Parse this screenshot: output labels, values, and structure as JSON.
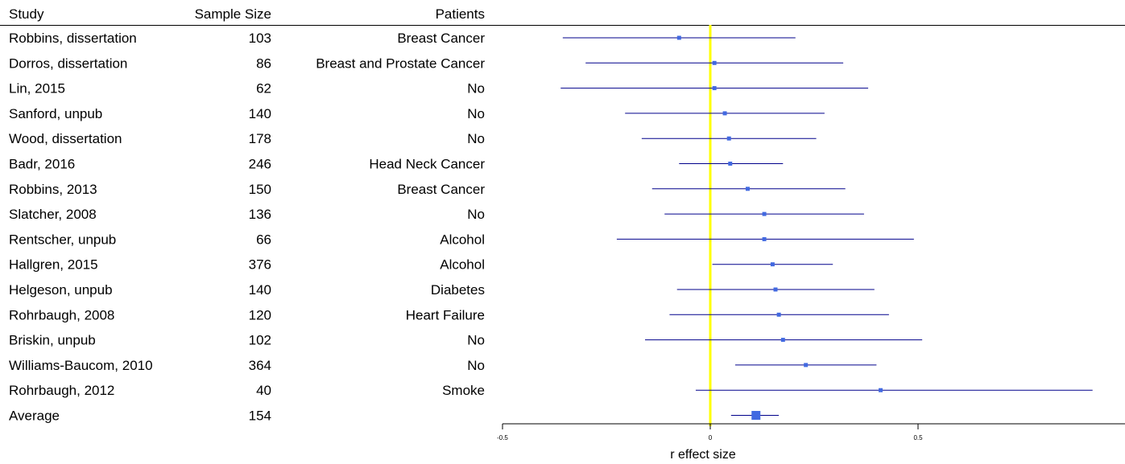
{
  "chart_data": {
    "type": "forest",
    "columns": {
      "study": "Study",
      "sample_size": "Sample Size",
      "patients": "Patients"
    },
    "rows": [
      {
        "study": "Robbins, dissertation",
        "n": "103",
        "patients": "Breast Cancer",
        "r": -0.075,
        "lo": -0.355,
        "hi": 0.205
      },
      {
        "study": "Dorros, dissertation",
        "n": "86",
        "patients": "Breast and Prostate Cancer",
        "r": 0.01,
        "lo": -0.3,
        "hi": 0.32
      },
      {
        "study": "Lin, 2015",
        "n": "62",
        "patients": "No",
        "r": 0.01,
        "lo": -0.36,
        "hi": 0.38
      },
      {
        "study": "Sanford, unpub",
        "n": "140",
        "patients": "No",
        "r": 0.035,
        "lo": -0.205,
        "hi": 0.275
      },
      {
        "study": "Wood, dissertation",
        "n": "178",
        "patients": "No",
        "r": 0.045,
        "lo": -0.165,
        "hi": 0.255
      },
      {
        "study": "Badr, 2016",
        "n": "246",
        "patients": "Head Neck Cancer",
        "r": 0.048,
        "lo": -0.075,
        "hi": 0.175
      },
      {
        "study": "Robbins, 2013",
        "n": "150",
        "patients": "Breast Cancer",
        "r": 0.09,
        "lo": -0.14,
        "hi": 0.325
      },
      {
        "study": "Slatcher, 2008",
        "n": "136",
        "patients": "No",
        "r": 0.13,
        "lo": -0.11,
        "hi": 0.37
      },
      {
        "study": "Rentscher, unpub",
        "n": "66",
        "patients": "Alcohol",
        "r": 0.13,
        "lo": -0.225,
        "hi": 0.49
      },
      {
        "study": "Hallgren, 2015",
        "n": "376",
        "patients": "Alcohol",
        "r": 0.15,
        "lo": 0.005,
        "hi": 0.295
      },
      {
        "study": "Helgeson, unpub",
        "n": "140",
        "patients": "Diabetes",
        "r": 0.157,
        "lo": -0.08,
        "hi": 0.395
      },
      {
        "study": "Rohrbaugh, 2008",
        "n": "120",
        "patients": "Heart Failure",
        "r": 0.165,
        "lo": -0.098,
        "hi": 0.43
      },
      {
        "study": "Briskin, unpub",
        "n": "102",
        "patients": "No",
        "r": 0.175,
        "lo": -0.157,
        "hi": 0.51
      },
      {
        "study": "Williams-Baucom, 2010",
        "n": "364",
        "patients": "No",
        "r": 0.23,
        "lo": 0.06,
        "hi": 0.4
      },
      {
        "study": "Rohrbaugh, 2012",
        "n": "40",
        "patients": "Smoke",
        "r": 0.41,
        "lo": -0.035,
        "hi": 0.92
      }
    ],
    "summary": {
      "study": "Average",
      "n": "154",
      "r": 0.11,
      "lo": 0.05,
      "hi": 0.165
    },
    "reference_line": 0,
    "xlim": [
      -0.5,
      1
    ],
    "x_ticks": [
      -0.5,
      0,
      0.5
    ],
    "x_tick_labels": [
      "-0.5",
      "0",
      "0.5"
    ],
    "xlabel": "r effect size"
  },
  "colors": {
    "ci_line": "#00008b",
    "point": "#4169e1",
    "reference_line": "#ffff00",
    "text": "#000000"
  }
}
